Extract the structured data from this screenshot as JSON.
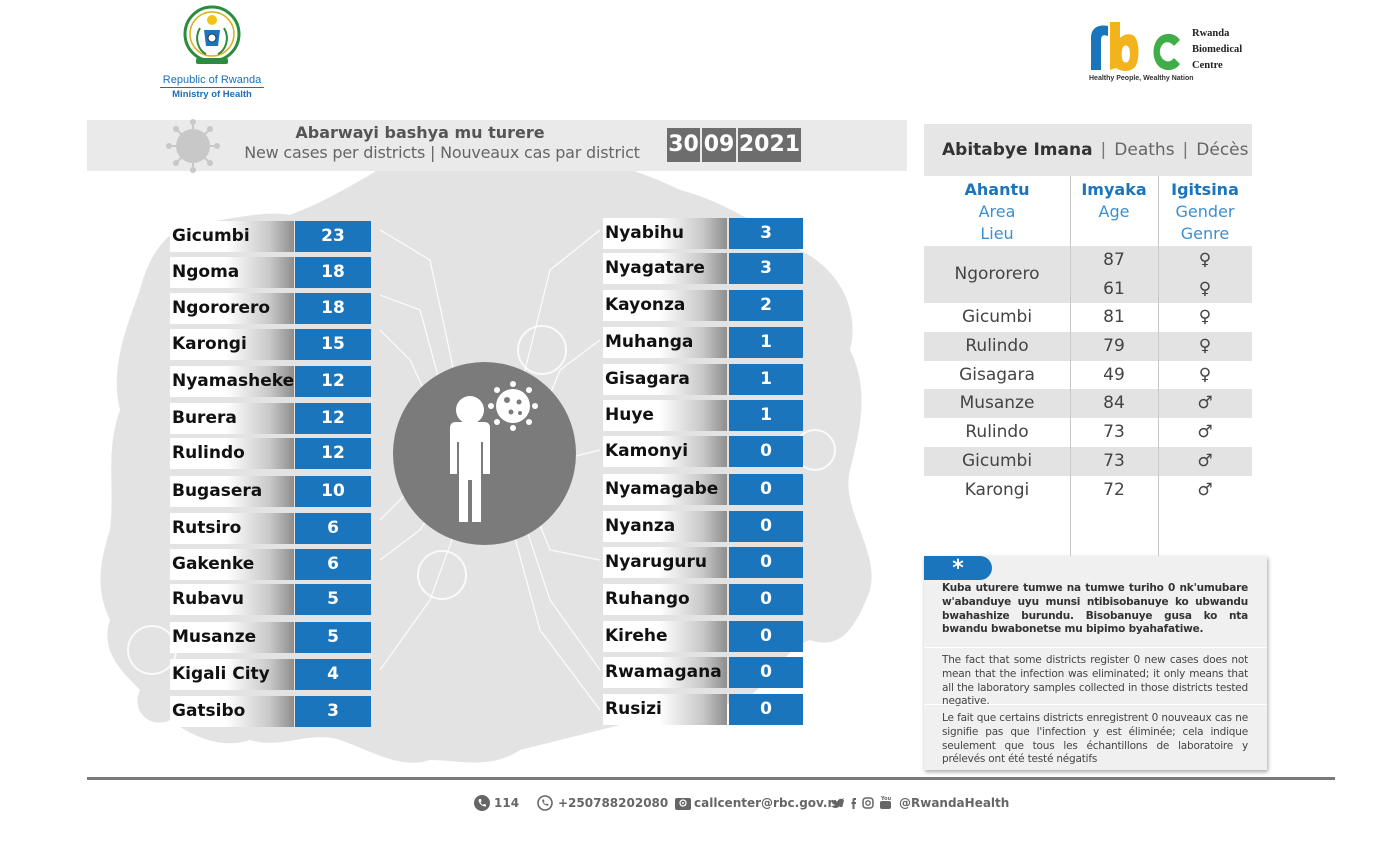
{
  "header": {
    "ministry_line1": "Republic of Rwanda",
    "ministry_line2": "Ministry of Health",
    "rbc_tagline": "Healthy People, Wealthy Nation",
    "rbc_name_line1": "Rwanda",
    "rbc_name_line2": "Biomedical",
    "rbc_name_line3": "Centre"
  },
  "banner": {
    "title_rw": "Abarwayi bashya mu turere",
    "title_en_fr": "New cases per districts  |  Nouveaux cas par district",
    "date_day": "30",
    "date_month": "09",
    "date_year": "2021"
  },
  "districts_left": [
    {
      "name": "Gicumbi",
      "cases": "23"
    },
    {
      "name": "Ngoma",
      "cases": "18"
    },
    {
      "name": "Ngororero",
      "cases": "18"
    },
    {
      "name": "Karongi",
      "cases": "15"
    },
    {
      "name": "Nyamasheke",
      "cases": "12"
    },
    {
      "name": "Burera",
      "cases": "12"
    },
    {
      "name": "Rulindo",
      "cases": "12"
    },
    {
      "name": "Bugasera",
      "cases": "10"
    },
    {
      "name": "Rutsiro",
      "cases": "6"
    },
    {
      "name": "Gakenke",
      "cases": "6"
    },
    {
      "name": "Rubavu",
      "cases": "5"
    },
    {
      "name": "Musanze",
      "cases": "5"
    },
    {
      "name": "Kigali City",
      "cases": "4"
    },
    {
      "name": "Gatsibo",
      "cases": "3"
    }
  ],
  "districts_right": [
    {
      "name": "Nyabihu",
      "cases": "3"
    },
    {
      "name": "Nyagatare",
      "cases": "3"
    },
    {
      "name": "Kayonza",
      "cases": "2"
    },
    {
      "name": "Muhanga",
      "cases": "1"
    },
    {
      "name": "Gisagara",
      "cases": "1"
    },
    {
      "name": "Huye",
      "cases": "1"
    },
    {
      "name": "Kamonyi",
      "cases": "0"
    },
    {
      "name": "Nyamagabe",
      "cases": "0"
    },
    {
      "name": "Nyanza",
      "cases": "0"
    },
    {
      "name": "Nyaruguru",
      "cases": "0"
    },
    {
      "name": "Ruhango",
      "cases": "0"
    },
    {
      "name": "Kirehe",
      "cases": "0"
    },
    {
      "name": "Rwamagana",
      "cases": "0"
    },
    {
      "name": "Rusizi",
      "cases": "0"
    }
  ],
  "deaths": {
    "title_rw": "Abitabye Imana",
    "sep": "|",
    "title_en": "Deaths",
    "title_fr": "Décès",
    "col_area": [
      "Ahantu",
      "Area",
      "Lieu"
    ],
    "col_age": [
      "Imyaka",
      "Age"
    ],
    "col_gender": [
      "Igitsina",
      "Gender",
      "Genre"
    ],
    "group_area": "Ngororero",
    "group_rows": [
      {
        "age": "87",
        "gender": "♀"
      },
      {
        "age": "61",
        "gender": "♀"
      }
    ],
    "rows": [
      {
        "area": "Gicumbi",
        "age": "81",
        "gender": "♀"
      },
      {
        "area": "Rulindo",
        "age": "79",
        "gender": "♀"
      },
      {
        "area": "Gisagara",
        "age": "49",
        "gender": "♀"
      },
      {
        "area": "Musanze",
        "age": "84",
        "gender": "♂"
      },
      {
        "area": "Rulindo",
        "age": "73",
        "gender": "♂"
      },
      {
        "area": "Gicumbi",
        "age": "73",
        "gender": "♂"
      },
      {
        "area": "Karongi",
        "age": "72",
        "gender": "♂"
      }
    ]
  },
  "note": {
    "marker": "*",
    "text_rw": "Kuba uturere tumwe na tumwe turiho 0 nk'umubare w'abanduye  uyu munsi ntibisobanuye ko ubwandu bwahashize burundu. Bisobanuye gusa ko nta bwandu bwabonetse mu bipimo byahafatiwe.",
    "text_en": "The fact that some districts register 0 new cases does not mean that the infection was eliminated; it only means that all the laboratory samples collected in those districts tested negative.",
    "text_fr": "Le fait que certains districts enregistrent 0 nouveaux cas ne signifie pas que l'infection y est éliminée; cela indique seulement que tous les échantillons de laboratoire y prélevés ont été testé négatifs"
  },
  "footer": {
    "hotline": "114",
    "phone": "+250788202080",
    "email": "callcenter@rbc.gov.rw",
    "social": "@RwandaHealth"
  },
  "colors": {
    "accent_blue": "#1b75bc",
    "date_gray": "#6d6d6d",
    "map_gray": "#e2e2e2"
  }
}
